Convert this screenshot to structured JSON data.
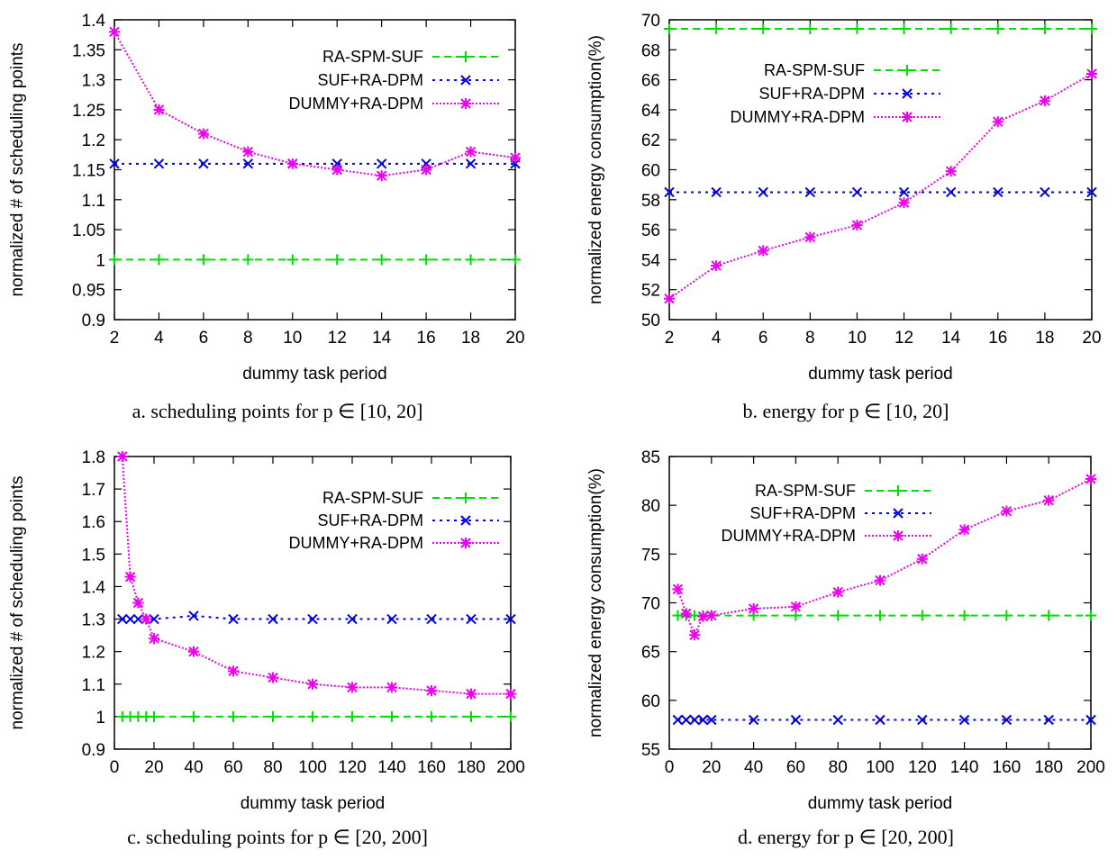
{
  "series_styles": [
    {
      "color": "#00dd00",
      "marker": "plus",
      "dash": "8,5"
    },
    {
      "color": "#0000dd",
      "marker": "cross",
      "dash": "3,5"
    },
    {
      "color": "#ee00ee",
      "marker": "star",
      "dash": "2,2"
    }
  ],
  "chart_data": [
    {
      "type": "line",
      "caption": "a. scheduling points for p ∈ [10, 20]",
      "xlabel": "dummy task period",
      "ylabel": "normalized # of scheduling points",
      "xlim": [
        2,
        20
      ],
      "ylim": [
        0.9,
        1.4
      ],
      "xticks": [
        2,
        4,
        6,
        8,
        10,
        12,
        14,
        16,
        18,
        20
      ],
      "xtick_labels": [
        "2",
        "4",
        "6",
        "8",
        "10",
        "12",
        "14",
        "16",
        "18",
        "20"
      ],
      "yticks": [
        0.9,
        0.95,
        1,
        1.05,
        1.1,
        1.15,
        1.2,
        1.25,
        1.3,
        1.35,
        1.4
      ],
      "ytick_labels": [
        "0.9",
        "0.95",
        "1",
        "1.05",
        "1.1",
        "1.15",
        "1.2",
        "1.25",
        "1.3",
        "1.35",
        "1.4"
      ],
      "legend": "top-right",
      "x": [
        2,
        4,
        6,
        8,
        10,
        12,
        14,
        16,
        18,
        20
      ],
      "series": [
        {
          "name": "RA-SPM-SUF",
          "values": [
            1,
            1,
            1,
            1,
            1,
            1,
            1,
            1,
            1,
            1
          ]
        },
        {
          "name": "SUF+RA-DPM",
          "values": [
            1.16,
            1.16,
            1.16,
            1.16,
            1.16,
            1.16,
            1.16,
            1.16,
            1.16,
            1.16
          ]
        },
        {
          "name": "DUMMY+RA-DPM",
          "values": [
            1.38,
            1.25,
            1.21,
            1.18,
            1.16,
            1.15,
            1.14,
            1.15,
            1.18,
            1.17
          ]
        }
      ]
    },
    {
      "type": "line",
      "caption": "b. energy for p ∈ [10, 20]",
      "xlabel": "dummy task period",
      "ylabel": "normalized energy consumption(%)",
      "xlim": [
        2,
        20
      ],
      "ylim": [
        50,
        70
      ],
      "xticks": [
        2,
        4,
        6,
        8,
        10,
        12,
        14,
        16,
        18,
        20
      ],
      "xtick_labels": [
        "2",
        "4",
        "6",
        "8",
        "10",
        "12",
        "14",
        "16",
        "18",
        "20"
      ],
      "yticks": [
        50,
        52,
        54,
        56,
        58,
        60,
        62,
        64,
        66,
        68,
        70
      ],
      "ytick_labels": [
        "50",
        "52",
        "54",
        "56",
        "58",
        "60",
        "62",
        "64",
        "66",
        "68",
        "70"
      ],
      "legend": "top-right",
      "x": [
        2,
        4,
        6,
        8,
        10,
        12,
        14,
        16,
        18,
        20
      ],
      "series": [
        {
          "name": "RA-SPM-SUF",
          "values": [
            69.4,
            69.4,
            69.4,
            69.4,
            69.4,
            69.4,
            69.4,
            69.4,
            69.4,
            69.4
          ]
        },
        {
          "name": "SUF+RA-DPM",
          "values": [
            58.5,
            58.5,
            58.5,
            58.5,
            58.5,
            58.5,
            58.5,
            58.5,
            58.5,
            58.5
          ]
        },
        {
          "name": "DUMMY+RA-DPM",
          "values": [
            51.4,
            53.6,
            54.6,
            55.5,
            56.3,
            57.8,
            59.9,
            63.2,
            64.6,
            66.4
          ]
        }
      ]
    },
    {
      "type": "line",
      "caption": "c. scheduling points for p ∈ [20, 200]",
      "xlabel": "dummy task period",
      "ylabel": "normalized # of scheduling points",
      "xlim": [
        0,
        200
      ],
      "ylim": [
        0.9,
        1.8
      ],
      "xticks": [
        0,
        20,
        40,
        60,
        80,
        100,
        120,
        140,
        160,
        180,
        200
      ],
      "xtick_labels": [
        "0",
        "20",
        "40",
        "60",
        "80",
        "100",
        "120",
        "140",
        "160",
        "180",
        "200"
      ],
      "yticks": [
        0.9,
        1,
        1.1,
        1.2,
        1.3,
        1.4,
        1.5,
        1.6,
        1.7,
        1.8
      ],
      "ytick_labels": [
        "0.9",
        "1",
        "1.1",
        "1.2",
        "1.3",
        "1.4",
        "1.5",
        "1.6",
        "1.7",
        "1.8"
      ],
      "legend": "top-right",
      "x": [
        4,
        8,
        12,
        16,
        20,
        40,
        60,
        80,
        100,
        120,
        140,
        160,
        180,
        200
      ],
      "series": [
        {
          "name": "RA-SPM-SUF",
          "values": [
            1,
            1,
            1,
            1,
            1,
            1,
            1,
            1,
            1,
            1,
            1,
            1,
            1,
            1
          ]
        },
        {
          "name": "SUF+RA-DPM",
          "values": [
            1.3,
            1.3,
            1.3,
            1.3,
            1.3,
            1.31,
            1.3,
            1.3,
            1.3,
            1.3,
            1.3,
            1.3,
            1.3,
            1.3
          ]
        },
        {
          "name": "DUMMY+RA-DPM",
          "values": [
            1.8,
            1.43,
            1.35,
            1.3,
            1.24,
            1.2,
            1.14,
            1.12,
            1.1,
            1.09,
            1.09,
            1.08,
            1.07,
            1.07
          ]
        }
      ]
    },
    {
      "type": "line",
      "caption": "d. energy for p ∈ [20, 200]",
      "xlabel": "dummy task period",
      "ylabel": "normalized energy consumption(%)",
      "xlim": [
        0,
        200
      ],
      "ylim": [
        55,
        85
      ],
      "xticks": [
        0,
        20,
        40,
        60,
        80,
        100,
        120,
        140,
        160,
        180,
        200
      ],
      "xtick_labels": [
        "0",
        "20",
        "40",
        "60",
        "80",
        "100",
        "120",
        "140",
        "160",
        "180",
        "200"
      ],
      "yticks": [
        55,
        60,
        65,
        70,
        75,
        80,
        85
      ],
      "ytick_labels": [
        "55",
        "60",
        "65",
        "70",
        "75",
        "80",
        "85"
      ],
      "legend": "top-right",
      "x": [
        4,
        8,
        12,
        16,
        20,
        40,
        60,
        80,
        100,
        120,
        140,
        160,
        180,
        200
      ],
      "series": [
        {
          "name": "RA-SPM-SUF",
          "values": [
            68.7,
            68.7,
            68.7,
            68.7,
            68.7,
            68.7,
            68.7,
            68.7,
            68.7,
            68.7,
            68.7,
            68.7,
            68.7,
            68.7
          ]
        },
        {
          "name": "SUF+RA-DPM",
          "values": [
            58,
            58,
            58,
            58,
            58,
            58,
            58,
            58,
            58,
            58,
            58,
            58,
            58,
            58
          ]
        },
        {
          "name": "DUMMY+RA-DPM",
          "values": [
            71.4,
            68.9,
            66.7,
            68.6,
            68.7,
            69.4,
            69.6,
            71.1,
            72.3,
            74.5,
            77.5,
            79.4,
            80.5,
            82.7
          ]
        }
      ]
    }
  ]
}
